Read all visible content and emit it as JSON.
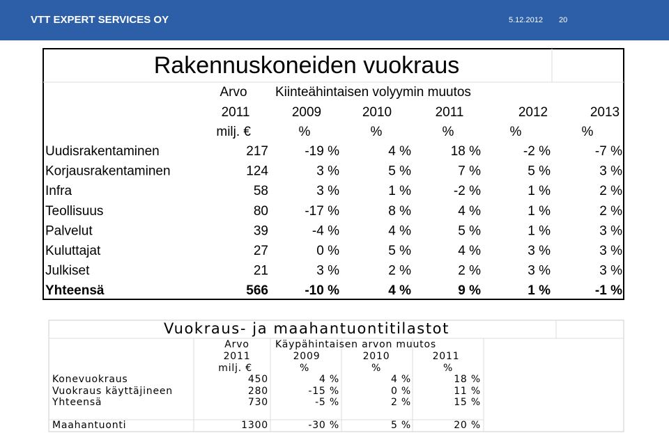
{
  "header": {
    "company": "VTT EXPERT SERVICES OY",
    "date": "5.12.2012",
    "page": "20"
  },
  "table1": {
    "title": "Rakennuskoneiden vuokraus",
    "header_rows": [
      [
        "Arvo",
        "Kiinteähintaisen volyymin muutos"
      ],
      [
        "2011",
        "2009",
        "2010",
        "2011",
        "2012",
        "2013"
      ],
      [
        "milj. €",
        "%",
        "%",
        "%",
        "%",
        "%"
      ]
    ],
    "rows": [
      [
        "Uudisrakentaminen",
        "217",
        "-19 %",
        "4 %",
        "18 %",
        "-2 %",
        "-7 %"
      ],
      [
        "Korjausrakentaminen",
        "124",
        "3 %",
        "5 %",
        "7 %",
        "5 %",
        "3 %"
      ],
      [
        "Infra",
        "58",
        "3 %",
        "1 %",
        "-2 %",
        "1 %",
        "2 %"
      ],
      [
        "Teollisuus",
        "80",
        "-17 %",
        "8 %",
        "4 %",
        "1 %",
        "2 %"
      ],
      [
        "Palvelut",
        "39",
        "-4 %",
        "4 %",
        "5 %",
        "1 %",
        "3 %"
      ],
      [
        "Kuluttajat",
        "27",
        "0 %",
        "5 %",
        "4 %",
        "3 %",
        "3 %"
      ],
      [
        "Julkiset",
        "21",
        "3 %",
        "2 %",
        "2 %",
        "3 %",
        "3 %"
      ],
      [
        "Yhteensä",
        "566",
        "-10 %",
        "4 %",
        "9 %",
        "1 %",
        "-1 %"
      ]
    ]
  },
  "table2": {
    "title": "Vuokraus- ja maahantuontitilastot",
    "header_rows": [
      [
        "Arvo",
        "Käypähintaisen arvon muutos"
      ],
      [
        "2011",
        "2009",
        "2010",
        "2011"
      ],
      [
        "milj. €",
        "%",
        "%",
        "%"
      ]
    ],
    "rows": [
      [
        "Konevuokraus",
        "450",
        "4 %",
        "4 %",
        "18 %"
      ],
      [
        "Vuokraus käyttäjineen",
        "280",
        "-15 %",
        "0 %",
        "11 %"
      ],
      [
        "Yhteensä",
        "730",
        "-5 %",
        "2 %",
        "15 %"
      ],
      [
        "Maahantuonti",
        "1300",
        "-30 %",
        "5 %",
        "20 %"
      ]
    ]
  }
}
